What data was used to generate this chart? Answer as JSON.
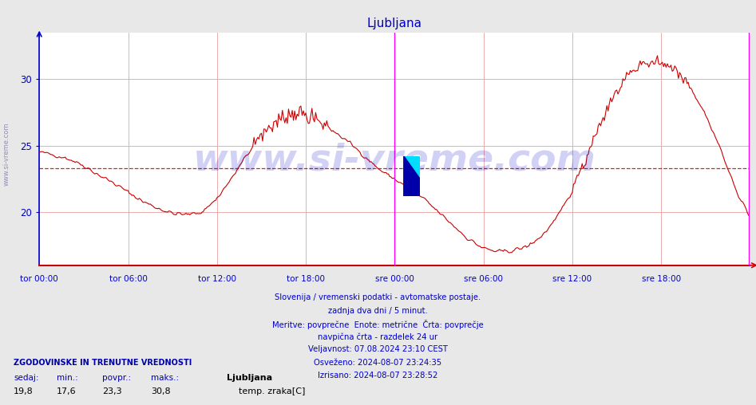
{
  "title": "Ljubljana",
  "title_color": "#0000cc",
  "bg_color": "#e8e8e8",
  "plot_bg_color": "#ffffff",
  "line_color": "#cc0000",
  "grid_color": "#e8a0a0",
  "grid_color_h": "#e8a0a0",
  "ylabel_color": "#0000cc",
  "xlabel_color": "#0000cc",
  "avg_line_color": "#cc0000",
  "avg_line_value": 23.3,
  "ylim": [
    16.0,
    33.5
  ],
  "yticks": [
    20,
    25,
    30
  ],
  "xtick_labels": [
    "tor 00:00",
    "tor 06:00",
    "tor 12:00",
    "tor 18:00",
    "sre 00:00",
    "sre 06:00",
    "sre 12:00",
    "sre 18:00"
  ],
  "vline_color": "#ff00ff",
  "watermark": "www.si-vreme.com",
  "watermark_color": "#0000cc",
  "watermark_alpha": 0.18,
  "footer_lines": [
    "Slovenija / vremenski podatki - avtomatske postaje.",
    "zadnja dva dni / 5 minut.",
    "Meritve: povprečne  Enote: metrične  Črta: povprečje",
    "navpična črta - razdelek 24 ur",
    "Veljavnost: 07.08.2024 23:10 CEST",
    "Osveženo: 2024-08-07 23:24:35",
    "Izrisano: 2024-08-07 23:28:52"
  ],
  "footer_color": "#0000cc",
  "stats_label": "ZGODOVINSKE IN TRENUTNE VREDNOSTI",
  "stats_color": "#0000aa",
  "stats_headers": [
    "sedaj:",
    "min.:",
    "povpr.:",
    "maks.:"
  ],
  "stats_values": [
    "19,8",
    "17,6",
    "23,3",
    "30,8"
  ],
  "legend_station": "Ljubljana",
  "legend_series": "temp. zraka[C]",
  "legend_color": "#cc0000",
  "sidebar_text": "www.si-vreme.com",
  "sidebar_color": "#4444aa",
  "knot_t": [
    0,
    1,
    2,
    3,
    4,
    5,
    6,
    7,
    8,
    9,
    10,
    11,
    12,
    13,
    14,
    15,
    16,
    17,
    18,
    19,
    20,
    21,
    22,
    23,
    24,
    25,
    26,
    27,
    28,
    29,
    30,
    31,
    32,
    33,
    34,
    35,
    36,
    37,
    38,
    39,
    40,
    41,
    42,
    43,
    44,
    45,
    46,
    47,
    48
  ],
  "knot_v": [
    24.5,
    24.3,
    24.0,
    23.5,
    22.8,
    22.2,
    21.5,
    20.8,
    20.3,
    19.9,
    19.8,
    20.0,
    21.0,
    22.5,
    24.2,
    25.8,
    26.8,
    27.4,
    27.3,
    26.8,
    26.0,
    25.2,
    24.2,
    23.2,
    22.5,
    21.8,
    21.0,
    20.0,
    19.0,
    18.0,
    17.3,
    17.0,
    17.1,
    17.4,
    18.2,
    19.5,
    21.5,
    24.0,
    26.8,
    29.0,
    30.5,
    31.2,
    31.3,
    30.8,
    29.5,
    27.5,
    25.0,
    22.0,
    19.8
  ]
}
